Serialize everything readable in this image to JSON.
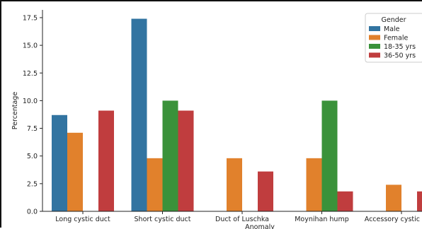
{
  "chart_data": {
    "type": "bar",
    "categories": [
      "Long cystic duct",
      "Short cystic duct",
      "Duct of Luschka",
      "Moynihan hump",
      "Accessory cystic arter"
    ],
    "series": [
      {
        "name": "Male",
        "color": "#3274a1",
        "values": [
          8.7,
          17.4,
          0,
          0,
          0
        ]
      },
      {
        "name": "Female",
        "color": "#e1812c",
        "values": [
          7.1,
          4.8,
          4.8,
          4.8,
          2.4
        ]
      },
      {
        "name": "18-35 yrs",
        "color": "#3a923a",
        "values": [
          0,
          10.0,
          0,
          10.0,
          0
        ]
      },
      {
        "name": "36-50 yrs",
        "color": "#c03d3e",
        "values": [
          9.1,
          9.1,
          3.6,
          1.8,
          1.8
        ]
      }
    ],
    "xlabel": "Anomaly",
    "ylabel": "Percentage",
    "ylim": [
      0,
      18.2
    ],
    "yticks": [
      "0.0",
      "2.5",
      "5.0",
      "7.5",
      "10.0",
      "12.5",
      "15.0",
      "17.5"
    ],
    "grid": false,
    "legend": {
      "title": "Gender",
      "placement": "top-right"
    }
  }
}
